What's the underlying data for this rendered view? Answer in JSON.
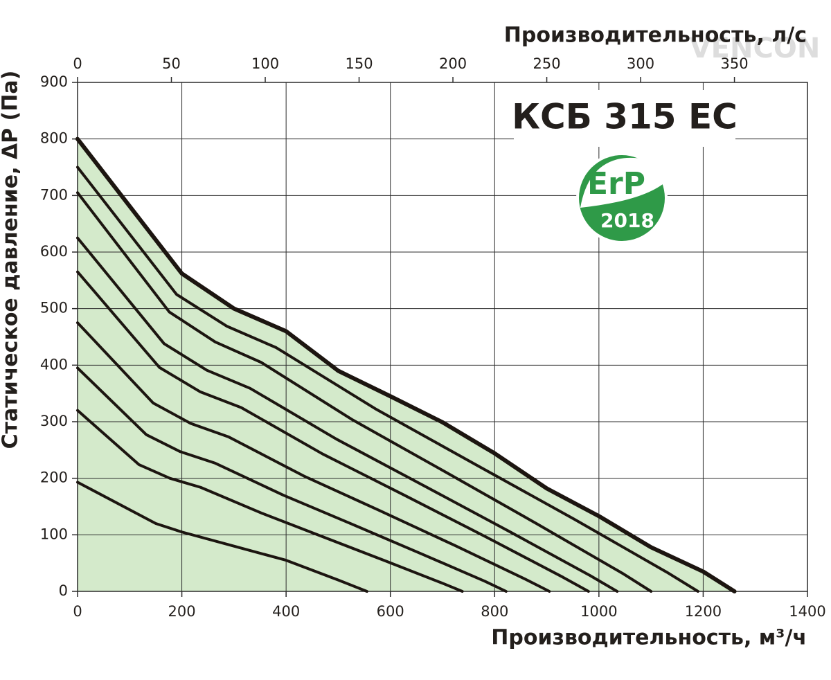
{
  "chart_data": {
    "type": "line",
    "title": "КСБ 315 ЕС",
    "badge": {
      "label": "ErP",
      "year": "2018"
    },
    "watermark": "VENCON",
    "x_label": "Производительность, м³/ч",
    "x2_label": "Производительность, л/с",
    "y_label": "Статическое давление, ΔP (Па)",
    "xlim": [
      0,
      1400
    ],
    "xticks": [
      0,
      200,
      400,
      600,
      800,
      1000,
      1200,
      1400
    ],
    "x2lim": [
      0,
      388.9
    ],
    "x2ticks": [
      0,
      50,
      100,
      150,
      200,
      250,
      300,
      350
    ],
    "ylim": [
      0,
      900
    ],
    "yticks": [
      0,
      100,
      200,
      300,
      400,
      500,
      600,
      700,
      800,
      900
    ],
    "grid": true,
    "area_color": "#d4eacb",
    "series": [
      {
        "color": "#1c1510",
        "x": [
          0,
          200,
          300,
          400,
          500,
          600,
          700,
          800,
          900,
          1000,
          1100,
          1200,
          1260
        ],
        "values": [
          800,
          562,
          500,
          460,
          390,
          345,
          299,
          244,
          182,
          133,
          78,
          35,
          0
        ]
      },
      {
        "color": "#1c1510",
        "x": [
          0,
          190,
          286,
          381,
          571,
          762,
          952,
          1130,
          1190
        ],
        "values": [
          750,
          525,
          469,
          431,
          323,
          225,
          128,
          34,
          0
        ]
      },
      {
        "color": "#1c1510",
        "x": [
          0,
          176,
          264,
          352,
          528,
          704,
          880,
          1045,
          1100
        ],
        "values": [
          705,
          494,
          441,
          405,
          303,
          212,
          120,
          32,
          0
        ]
      },
      {
        "color": "#1c1510",
        "x": [
          0,
          166,
          248,
          331,
          497,
          662,
          828,
          983,
          1035
        ],
        "values": [
          625,
          438,
          391,
          359,
          269,
          188,
          106,
          28,
          0
        ]
      },
      {
        "color": "#1c1510",
        "x": [
          0,
          157,
          235,
          314,
          470,
          627,
          784,
          931,
          980
        ],
        "values": [
          565,
          396,
          353,
          325,
          243,
          170,
          96,
          25,
          0
        ]
      },
      {
        "color": "#1c1510",
        "x": [
          0,
          145,
          217,
          290,
          434,
          579,
          724,
          860,
          905
        ],
        "values": [
          475,
          333,
          297,
          273,
          204,
          143,
          81,
          21,
          0
        ]
      },
      {
        "color": "#1c1510",
        "x": [
          0,
          132,
          197,
          263,
          395,
          526,
          658,
          781,
          822
        ],
        "values": [
          395,
          277,
          247,
          227,
          170,
          119,
          67,
          18,
          0
        ]
      },
      {
        "color": "#1c1510",
        "x": [
          0,
          118,
          177,
          236,
          354,
          472,
          590,
          701,
          738
        ],
        "values": [
          320,
          224,
          200,
          184,
          138,
          96,
          54,
          14,
          0
        ]
      },
      {
        "color": "#1c1510",
        "x": [
          0,
          150,
          200,
          300,
          400,
          500,
          555
        ],
        "values": [
          193,
          120,
          105,
          80,
          55,
          20,
          0
        ]
      }
    ]
  }
}
